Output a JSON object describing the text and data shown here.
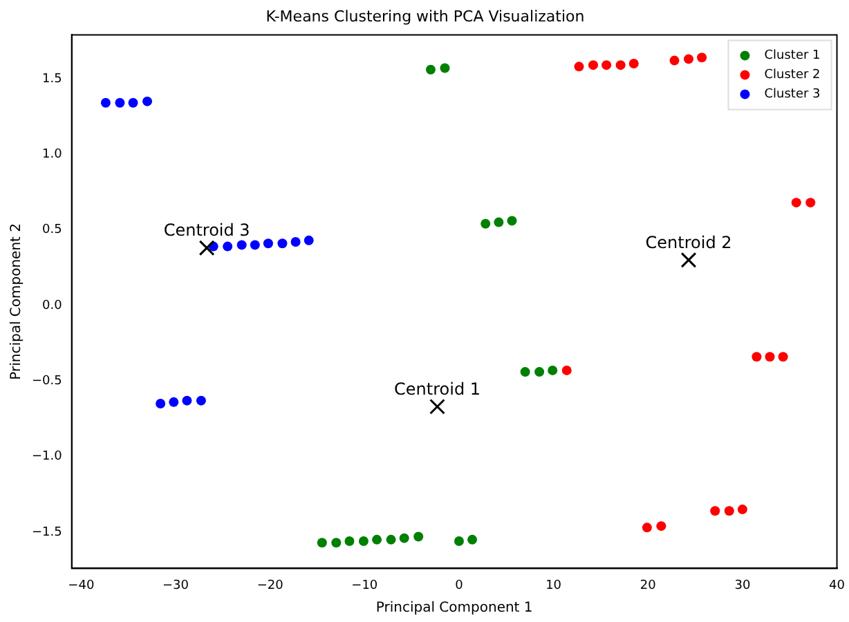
{
  "chart_data": {
    "type": "scatter",
    "title": "K-Means Clustering with PCA Visualization",
    "xlabel": "Principal Component 1",
    "ylabel": "Principal Component 2",
    "xlim": [
      -41,
      40
    ],
    "ylim": [
      -1.74,
      1.79
    ],
    "xticks": [
      {
        "value": -40,
        "label": "−40"
      },
      {
        "value": -30,
        "label": "−30"
      },
      {
        "value": -20,
        "label": "−20"
      },
      {
        "value": -10,
        "label": "−10"
      },
      0,
      10,
      20,
      30,
      40
    ],
    "yticks": [
      {
        "value": -1.5,
        "label": "−1.5"
      },
      {
        "value": -1.0,
        "label": "−1.0"
      },
      {
        "value": -0.5,
        "label": "−0.5"
      },
      {
        "value": 0,
        "label": "0.0"
      },
      {
        "value": 0.5,
        "label": "0.5"
      },
      {
        "value": 1.0,
        "label": "1.0"
      },
      {
        "value": 1.5,
        "label": "1.5"
      }
    ],
    "grid": false,
    "legend": "top right",
    "marker": "circle",
    "series": [
      {
        "name": "Cluster 1",
        "color": "#008000",
        "x": [
          -3.0,
          -1.5,
          2.8,
          4.2,
          5.6,
          7.0,
          8.5,
          9.9,
          -14.5,
          -13.0,
          -11.6,
          -10.1,
          -8.7,
          -7.2,
          -5.8,
          -4.3,
          0.0,
          1.4
        ],
        "values": [
          1.56,
          1.57,
          0.54,
          0.55,
          0.56,
          -0.44,
          -0.44,
          -0.43,
          -1.57,
          -1.57,
          -1.56,
          -1.56,
          -1.55,
          -1.55,
          -1.54,
          -1.53,
          -1.56,
          -1.55
        ]
      },
      {
        "name": "Cluster 2",
        "color": "#ff0000",
        "x": [
          12.7,
          14.2,
          15.6,
          17.1,
          18.5,
          22.8,
          24.3,
          25.7,
          35.7,
          37.2,
          11.4,
          31.5,
          32.9,
          34.3,
          19.9,
          21.4,
          27.1,
          28.6,
          30.0
        ],
        "values": [
          1.58,
          1.59,
          1.59,
          1.59,
          1.6,
          1.62,
          1.63,
          1.64,
          0.68,
          0.68,
          -0.43,
          -0.34,
          -0.34,
          -0.34,
          -1.47,
          -1.46,
          -1.36,
          -1.36,
          -1.35
        ]
      },
      {
        "name": "Cluster 3",
        "color": "#0000ff",
        "x": [
          -37.4,
          -35.9,
          -34.5,
          -33.0,
          -26.0,
          -24.5,
          -23.0,
          -21.6,
          -20.2,
          -18.7,
          -17.3,
          -15.9,
          -31.6,
          -30.2,
          -28.8,
          -27.3
        ],
        "values": [
          1.34,
          1.34,
          1.34,
          1.35,
          0.39,
          0.39,
          0.4,
          0.4,
          0.41,
          0.41,
          0.42,
          0.43,
          -0.65,
          -0.64,
          -0.63,
          -0.63
        ]
      },
      {
        "color": "#000000",
        "marker": "cross",
        "x": [
          -2.3,
          24.3,
          -26.7
        ],
        "values": [
          -0.67,
          0.3,
          0.38
        ]
      }
    ],
    "annotations": [
      {
        "text": "Centroid 1",
        "x": -2.3,
        "y": -0.67
      },
      {
        "text": "Centroid 2",
        "x": 24.3,
        "y": 0.3
      },
      {
        "text": "Centroid 3",
        "x": -26.7,
        "y": 0.38
      }
    ]
  }
}
